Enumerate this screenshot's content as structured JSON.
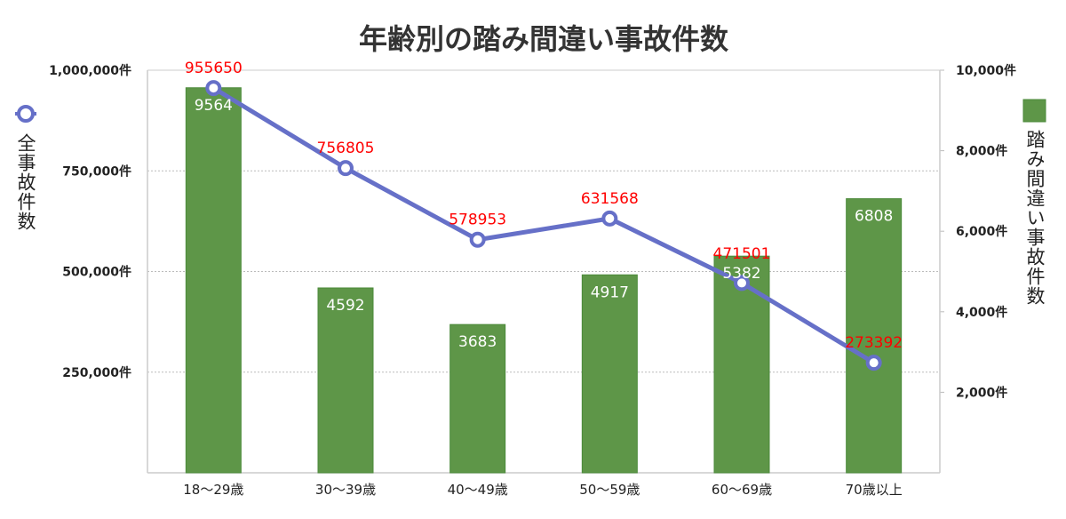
{
  "chart_data": {
    "type": "bar+line",
    "title": "年齢別の踏み間違い事故件数",
    "categories": [
      "18〜29歳",
      "30〜39歳",
      "40〜49歳",
      "50〜59歳",
      "60〜69歳",
      "70歳以上"
    ],
    "series": [
      {
        "name": "踏み間違い事故件数",
        "type": "bar",
        "axis": "right",
        "color": "#5e9648",
        "values": [
          9564,
          4592,
          3683,
          4917,
          5382,
          6808
        ]
      },
      {
        "name": "全事故件数",
        "type": "line",
        "axis": "left",
        "color": "#6670c8",
        "values": [
          955650,
          756805,
          578953,
          631568,
          471501,
          273392
        ]
      }
    ],
    "left_axis": {
      "label": "全事故件数",
      "range": [
        0,
        1000000
      ],
      "ticks": [
        "250,000件",
        "500,000件",
        "750,000件",
        "1,000,000件"
      ],
      "tick_values": [
        250000,
        500000,
        750000,
        1000000
      ]
    },
    "right_axis": {
      "label": "踏み間違い事故件数",
      "range": [
        0,
        10000
      ],
      "ticks": [
        "2,000件",
        "4,000件",
        "6,000件",
        "8,000件",
        "10,000件"
      ],
      "tick_values": [
        2000,
        4000,
        6000,
        8000,
        10000
      ]
    },
    "grid": "dotted horizontal at left-axis ticks",
    "data_labels": true,
    "line_label_color": "#ff0000"
  }
}
